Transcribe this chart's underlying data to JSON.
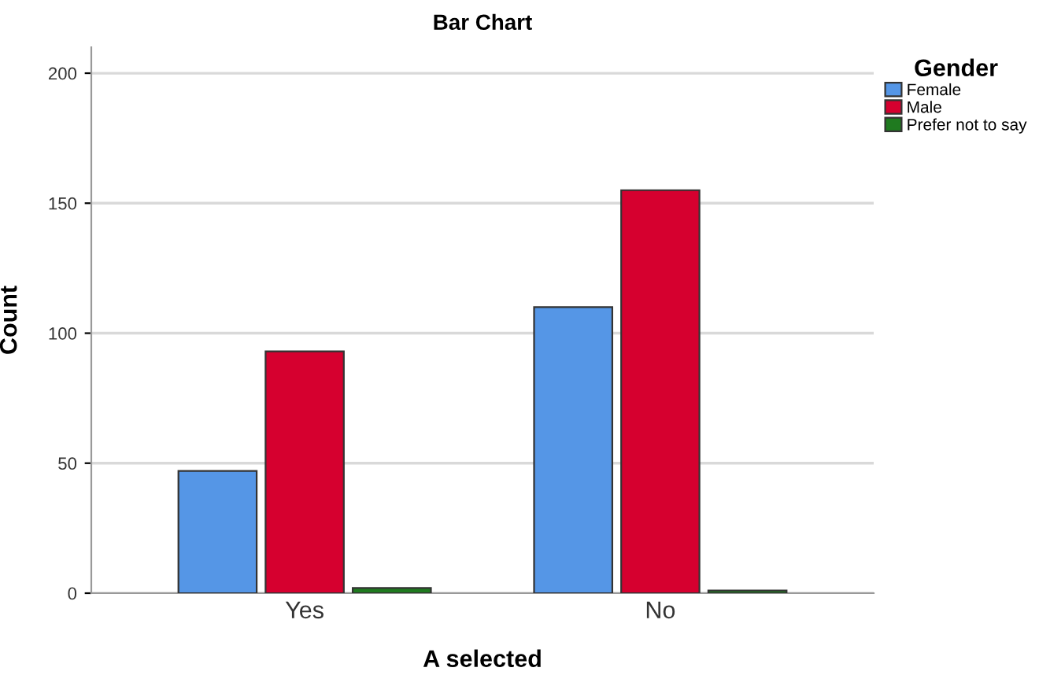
{
  "chart_data": {
    "type": "bar",
    "title": "Bar Chart",
    "xlabel": "A selected",
    "ylabel": "Count",
    "legend_title": "Gender",
    "categories": [
      "Yes",
      "No"
    ],
    "series": [
      {
        "name": "Female",
        "color": "#5596e6",
        "values": [
          47,
          110
        ]
      },
      {
        "name": "Male",
        "color": "#d6002f",
        "values": [
          93,
          155
        ]
      },
      {
        "name": "Prefer not to say",
        "color": "#1f7a1f",
        "values": [
          2,
          1
        ]
      }
    ],
    "ylim": [
      0,
      210
    ],
    "yticks": [
      0,
      50,
      100,
      150,
      200
    ],
    "grid": "y",
    "legend": "top right"
  }
}
